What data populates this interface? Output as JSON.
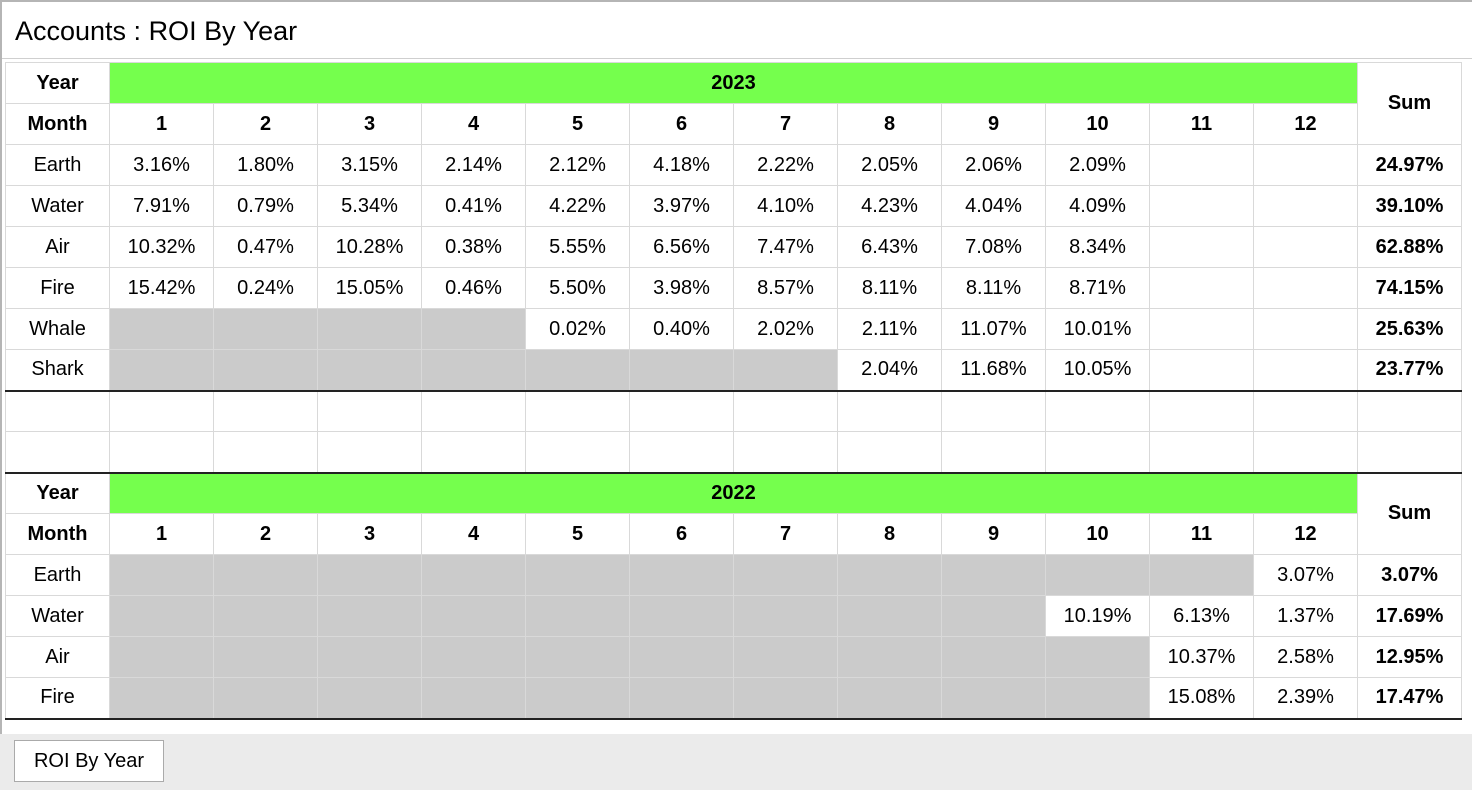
{
  "window": {
    "title": "Accounts : ROI By Year"
  },
  "labels": {
    "year": "Year",
    "month": "Month",
    "sum": "Sum"
  },
  "months": [
    "1",
    "2",
    "3",
    "4",
    "5",
    "6",
    "7",
    "8",
    "9",
    "10",
    "11",
    "12"
  ],
  "sections": [
    {
      "year": "2023",
      "rows": [
        {
          "name": "Earth",
          "values": [
            "3.16%",
            "1.80%",
            "3.15%",
            "2.14%",
            "2.12%",
            "4.18%",
            "2.22%",
            "2.05%",
            "2.06%",
            "2.09%",
            "",
            ""
          ],
          "sum": "24.97%"
        },
        {
          "name": "Water",
          "values": [
            "7.91%",
            "0.79%",
            "5.34%",
            "0.41%",
            "4.22%",
            "3.97%",
            "4.10%",
            "4.23%",
            "4.04%",
            "4.09%",
            "",
            ""
          ],
          "sum": "39.10%"
        },
        {
          "name": "Air",
          "values": [
            "10.32%",
            "0.47%",
            "10.28%",
            "0.38%",
            "5.55%",
            "6.56%",
            "7.47%",
            "6.43%",
            "7.08%",
            "8.34%",
            "",
            ""
          ],
          "sum": "62.88%"
        },
        {
          "name": "Fire",
          "values": [
            "15.42%",
            "0.24%",
            "15.05%",
            "0.46%",
            "5.50%",
            "3.98%",
            "8.57%",
            "8.11%",
            "8.11%",
            "8.71%",
            "",
            ""
          ],
          "sum": "74.15%"
        },
        {
          "name": "Whale",
          "values": [
            null,
            null,
            null,
            null,
            "0.02%",
            "0.40%",
            "2.02%",
            "2.11%",
            "11.07%",
            "10.01%",
            "",
            ""
          ],
          "sum": "25.63%"
        },
        {
          "name": "Shark",
          "values": [
            null,
            null,
            null,
            null,
            null,
            null,
            null,
            "2.04%",
            "11.68%",
            "10.05%",
            "",
            ""
          ],
          "sum": "23.77%"
        }
      ]
    },
    {
      "year": "2022",
      "rows": [
        {
          "name": "Earth",
          "values": [
            null,
            null,
            null,
            null,
            null,
            null,
            null,
            null,
            null,
            null,
            null,
            "3.07%"
          ],
          "sum": "3.07%"
        },
        {
          "name": "Water",
          "values": [
            null,
            null,
            null,
            null,
            null,
            null,
            null,
            null,
            null,
            "10.19%",
            "6.13%",
            "1.37%"
          ],
          "sum": "17.69%"
        },
        {
          "name": "Air",
          "values": [
            null,
            null,
            null,
            null,
            null,
            null,
            null,
            null,
            null,
            null,
            "10.37%",
            "2.58%"
          ],
          "sum": "12.95%"
        },
        {
          "name": "Fire",
          "values": [
            null,
            null,
            null,
            null,
            null,
            null,
            null,
            null,
            null,
            null,
            "15.08%",
            "2.39%"
          ],
          "sum": "17.47%"
        }
      ]
    }
  ],
  "colors": {
    "year_header": "#75ff4d",
    "value_text": "#4a9e4f",
    "empty_cell": "#cbcbcb"
  },
  "tabs": [
    {
      "label": "ROI By Year"
    }
  ]
}
